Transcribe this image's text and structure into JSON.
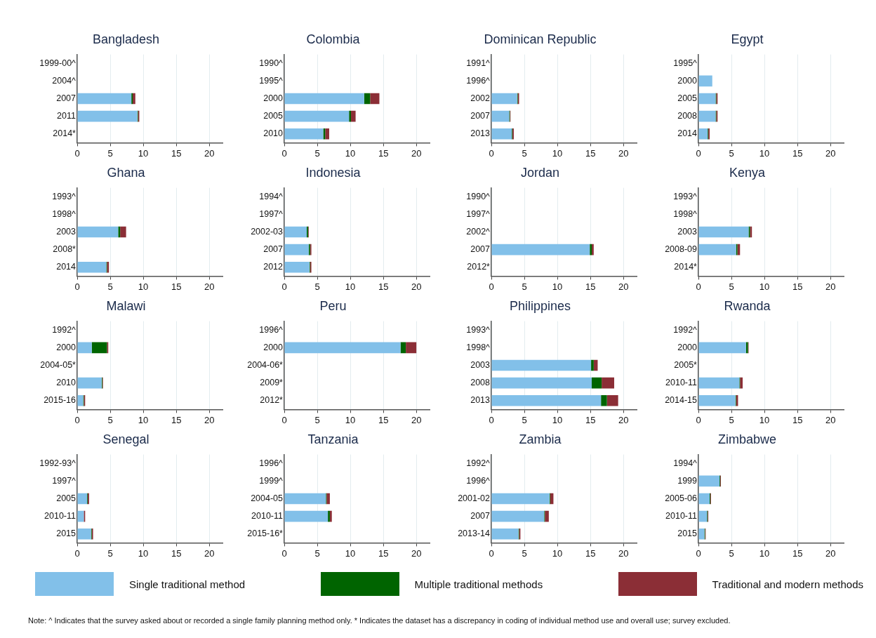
{
  "chart_data": [
    {
      "type": "bar",
      "orientation": "horizontal",
      "stacked": true,
      "title": "Bangladesh",
      "categories": [
        "1999-00^",
        "2004^",
        "2007",
        "2011",
        "2014*"
      ],
      "xlim": [
        0,
        22
      ],
      "xticks": [
        0,
        5,
        10,
        15,
        20
      ],
      "grid": "x",
      "legend": "bottom",
      "series": [
        {
          "name": "Single traditional method",
          "color": "#82c0e9",
          "values": [
            null,
            null,
            8.2,
            9.1,
            null
          ]
        },
        {
          "name": "Multiple traditional methods",
          "color": "#006400",
          "values": [
            null,
            null,
            0.2,
            0.1,
            null
          ]
        },
        {
          "name": "Traditional and modern methods",
          "color": "#8b2e36",
          "values": [
            null,
            null,
            0.4,
            0.2,
            null
          ]
        }
      ]
    },
    {
      "type": "bar",
      "orientation": "horizontal",
      "stacked": true,
      "title": "Colombia",
      "categories": [
        "1990^",
        "1995^",
        "2000",
        "2005",
        "2010"
      ],
      "xlim": [
        0,
        22
      ],
      "xticks": [
        0,
        5,
        10,
        15,
        20
      ],
      "grid": "x",
      "series": [
        {
          "color": "#82c0e9",
          "values": [
            null,
            null,
            12.1,
            9.8,
            5.9
          ]
        },
        {
          "color": "#006400",
          "values": [
            null,
            null,
            0.9,
            0.3,
            0.3
          ]
        },
        {
          "color": "#8b2e36",
          "values": [
            null,
            null,
            1.4,
            0.7,
            0.6
          ]
        }
      ]
    },
    {
      "type": "bar",
      "orientation": "horizontal",
      "stacked": true,
      "title": "Dominican Republic",
      "categories": [
        "1991^",
        "1996^",
        "2002",
        "2007",
        "2013"
      ],
      "xlim": [
        0,
        22
      ],
      "xticks": [
        0,
        5,
        10,
        15,
        20
      ],
      "grid": "x",
      "series": [
        {
          "color": "#82c0e9",
          "values": [
            null,
            null,
            3.9,
            2.7,
            3.1
          ]
        },
        {
          "color": "#006400",
          "values": [
            null,
            null,
            0.1,
            0.1,
            0.1
          ]
        },
        {
          "color": "#8b2e36",
          "values": [
            null,
            null,
            0.2,
            0.1,
            0.2
          ]
        }
      ]
    },
    {
      "type": "bar",
      "orientation": "horizontal",
      "stacked": true,
      "title": "Egypt",
      "categories": [
        "1995^",
        "2000",
        "2005",
        "2008",
        "2014"
      ],
      "xlim": [
        0,
        22
      ],
      "xticks": [
        0,
        5,
        10,
        15,
        20
      ],
      "grid": "x",
      "series": [
        {
          "color": "#82c0e9",
          "values": [
            null,
            2.1,
            2.6,
            2.6,
            1.4
          ]
        },
        {
          "color": "#006400",
          "values": [
            null,
            0,
            0.1,
            0.1,
            0.1
          ]
        },
        {
          "color": "#8b2e36",
          "values": [
            null,
            0,
            0.2,
            0.2,
            0.2
          ]
        }
      ]
    },
    {
      "type": "bar",
      "orientation": "horizontal",
      "stacked": true,
      "title": "Ghana",
      "categories": [
        "1993^",
        "1998^",
        "2003",
        "2008*",
        "2014"
      ],
      "xlim": [
        0,
        22
      ],
      "xticks": [
        0,
        5,
        10,
        15,
        20
      ],
      "grid": "x",
      "series": [
        {
          "color": "#82c0e9",
          "values": [
            null,
            null,
            6.2,
            null,
            4.4
          ]
        },
        {
          "color": "#006400",
          "values": [
            null,
            null,
            0.3,
            null,
            0.1
          ]
        },
        {
          "color": "#8b2e36",
          "values": [
            null,
            null,
            0.9,
            null,
            0.3
          ]
        }
      ]
    },
    {
      "type": "bar",
      "orientation": "horizontal",
      "stacked": true,
      "title": "Indonesia",
      "categories": [
        "1994^",
        "1997^",
        "2002-03",
        "2007",
        "2012"
      ],
      "xlim": [
        0,
        22
      ],
      "xticks": [
        0,
        5,
        10,
        15,
        20
      ],
      "grid": "x",
      "series": [
        {
          "color": "#82c0e9",
          "values": [
            null,
            null,
            3.4,
            3.7,
            3.8
          ]
        },
        {
          "color": "#006400",
          "values": [
            null,
            null,
            0.2,
            0.2,
            0.1
          ]
        },
        {
          "color": "#8b2e36",
          "values": [
            null,
            null,
            0.1,
            0.2,
            0.2
          ]
        }
      ]
    },
    {
      "type": "bar",
      "orientation": "horizontal",
      "stacked": true,
      "title": "Jordan",
      "categories": [
        "1990^",
        "1997^",
        "2002^",
        "2007",
        "2012*"
      ],
      "xlim": [
        0,
        22
      ],
      "xticks": [
        0,
        5,
        10,
        15,
        20
      ],
      "grid": "x",
      "series": [
        {
          "color": "#82c0e9",
          "values": [
            null,
            null,
            null,
            14.9,
            null
          ]
        },
        {
          "color": "#006400",
          "values": [
            null,
            null,
            null,
            0.3,
            null
          ]
        },
        {
          "color": "#8b2e36",
          "values": [
            null,
            null,
            null,
            0.3,
            null
          ]
        }
      ]
    },
    {
      "type": "bar",
      "orientation": "horizontal",
      "stacked": true,
      "title": "Kenya",
      "categories": [
        "1993^",
        "1998^",
        "2003",
        "2008-09",
        "2014*"
      ],
      "xlim": [
        0,
        22
      ],
      "xticks": [
        0,
        5,
        10,
        15,
        20
      ],
      "grid": "x",
      "series": [
        {
          "color": "#82c0e9",
          "values": [
            null,
            null,
            7.6,
            5.7,
            null
          ]
        },
        {
          "color": "#006400",
          "values": [
            null,
            null,
            0.2,
            0.2,
            null
          ]
        },
        {
          "color": "#8b2e36",
          "values": [
            null,
            null,
            0.3,
            0.4,
            null
          ]
        }
      ]
    },
    {
      "type": "bar",
      "orientation": "horizontal",
      "stacked": true,
      "title": "Malawi",
      "categories": [
        "1992^",
        "2000",
        "2004-05*",
        "2010",
        "2015-16"
      ],
      "xlim": [
        0,
        22
      ],
      "xticks": [
        0,
        5,
        10,
        15,
        20
      ],
      "grid": "x",
      "series": [
        {
          "color": "#82c0e9",
          "values": [
            null,
            2.2,
            null,
            3.7,
            0.9
          ]
        },
        {
          "color": "#006400",
          "values": [
            null,
            2.3,
            null,
            0.1,
            0.1
          ]
        },
        {
          "color": "#8b2e36",
          "values": [
            null,
            0.2,
            null,
            0.1,
            0.2
          ]
        }
      ]
    },
    {
      "type": "bar",
      "orientation": "horizontal",
      "stacked": true,
      "title": "Peru",
      "categories": [
        "1996^",
        "2000",
        "2004-06*",
        "2009*",
        "2012*"
      ],
      "xlim": [
        0,
        22
      ],
      "xticks": [
        0,
        5,
        10,
        15,
        20
      ],
      "grid": "x",
      "series": [
        {
          "color": "#82c0e9",
          "values": [
            null,
            17.6,
            null,
            null,
            null
          ]
        },
        {
          "color": "#006400",
          "values": [
            null,
            0.8,
            null,
            null,
            null
          ]
        },
        {
          "color": "#8b2e36",
          "values": [
            null,
            1.6,
            null,
            null,
            null
          ]
        }
      ]
    },
    {
      "type": "bar",
      "orientation": "horizontal",
      "stacked": true,
      "title": "Philippines",
      "categories": [
        "1993^",
        "1998^",
        "2003",
        "2008",
        "2013"
      ],
      "xlim": [
        0,
        22
      ],
      "xticks": [
        0,
        5,
        10,
        15,
        20
      ],
      "grid": "x",
      "series": [
        {
          "color": "#82c0e9",
          "values": [
            null,
            null,
            15.1,
            15.2,
            16.6
          ]
        },
        {
          "color": "#006400",
          "values": [
            null,
            null,
            0.4,
            1.5,
            0.9
          ]
        },
        {
          "color": "#8b2e36",
          "values": [
            null,
            null,
            0.6,
            1.9,
            1.7
          ]
        }
      ]
    },
    {
      "type": "bar",
      "orientation": "horizontal",
      "stacked": true,
      "title": "Rwanda",
      "categories": [
        "1992^",
        "2000",
        "2005*",
        "2010-11",
        "2014-15"
      ],
      "xlim": [
        0,
        22
      ],
      "xticks": [
        0,
        5,
        10,
        15,
        20
      ],
      "grid": "x",
      "series": [
        {
          "color": "#82c0e9",
          "values": [
            null,
            7.2,
            null,
            6.2,
            5.6
          ]
        },
        {
          "color": "#006400",
          "values": [
            null,
            0.3,
            null,
            0.1,
            0.1
          ]
        },
        {
          "color": "#8b2e36",
          "values": [
            null,
            0.1,
            null,
            0.4,
            0.3
          ]
        }
      ]
    },
    {
      "type": "bar",
      "orientation": "horizontal",
      "stacked": true,
      "title": "Senegal",
      "categories": [
        "1992-93^",
        "1997^",
        "2005",
        "2010-11",
        "2015"
      ],
      "xlim": [
        0,
        22
      ],
      "xticks": [
        0,
        5,
        10,
        15,
        20
      ],
      "grid": "x",
      "series": [
        {
          "color": "#82c0e9",
          "values": [
            null,
            null,
            1.5,
            1.0,
            2.1
          ]
        },
        {
          "color": "#006400",
          "values": [
            null,
            null,
            0.1,
            0,
            0.1
          ]
        },
        {
          "color": "#8b2e36",
          "values": [
            null,
            null,
            0.2,
            0.2,
            0.2
          ]
        }
      ]
    },
    {
      "type": "bar",
      "orientation": "horizontal",
      "stacked": true,
      "title": "Tanzania",
      "categories": [
        "1996^",
        "1999^",
        "2004-05",
        "2010-11",
        "2015-16*"
      ],
      "xlim": [
        0,
        22
      ],
      "xticks": [
        0,
        5,
        10,
        15,
        20
      ],
      "grid": "x",
      "series": [
        {
          "color": "#82c0e9",
          "values": [
            null,
            null,
            6.3,
            6.6,
            null
          ]
        },
        {
          "color": "#006400",
          "values": [
            null,
            null,
            0.1,
            0.3,
            null
          ]
        },
        {
          "color": "#8b2e36",
          "values": [
            null,
            null,
            0.5,
            0.3,
            null
          ]
        }
      ]
    },
    {
      "type": "bar",
      "orientation": "horizontal",
      "stacked": true,
      "title": "Zambia",
      "categories": [
        "1992^",
        "1996^",
        "2001-02",
        "2007",
        "2013-14"
      ],
      "xlim": [
        0,
        22
      ],
      "xticks": [
        0,
        5,
        10,
        15,
        20
      ],
      "grid": "x",
      "series": [
        {
          "color": "#82c0e9",
          "values": [
            null,
            null,
            8.8,
            8.0,
            4.1
          ]
        },
        {
          "color": "#006400",
          "values": [
            null,
            null,
            0.1,
            0.1,
            0.1
          ]
        },
        {
          "color": "#8b2e36",
          "values": [
            null,
            null,
            0.5,
            0.6,
            0.2
          ]
        }
      ]
    },
    {
      "type": "bar",
      "orientation": "horizontal",
      "stacked": true,
      "title": "Zimbabwe",
      "categories": [
        "1994^",
        "1999",
        "2005-06",
        "2010-11",
        "2015"
      ],
      "xlim": [
        0,
        22
      ],
      "xticks": [
        0,
        5,
        10,
        15,
        20
      ],
      "grid": "x",
      "annotations": [
        "Note: ^ Indicates that the survey asked about or recorded a single family planning method only. * Indicates the dataset has a discrepancy in coding of individual method use and overall use; survey excluded."
      ],
      "series": [
        {
          "color": "#82c0e9",
          "values": [
            null,
            3.2,
            1.7,
            1.3,
            0.9
          ]
        },
        {
          "color": "#006400",
          "values": [
            null,
            0.1,
            0.1,
            0.1,
            0.1
          ]
        },
        {
          "color": "#8b2e36",
          "values": [
            null,
            0.1,
            0.1,
            0.1,
            0.1
          ]
        }
      ]
    }
  ]
}
